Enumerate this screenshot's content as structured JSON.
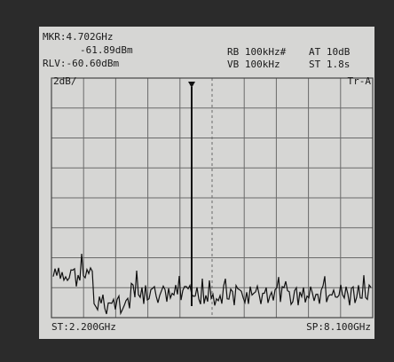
{
  "header": {
    "marker_frequency": "MKR:4.702GHz",
    "marker_level": "-61.89dBm",
    "reference_level": "RLV:-60.60dBm",
    "resolution_bandwidth": "RB 100kHz#",
    "attenuation": "AT 10dB",
    "video_bandwidth": "VB 100kHz",
    "sweep_time": "ST 1.8s"
  },
  "display": {
    "scale": "2dB/",
    "trace": "Tr-A"
  },
  "footer": {
    "start": "ST:2.200GHz",
    "stop": "SP:8.100GHz"
  }
}
